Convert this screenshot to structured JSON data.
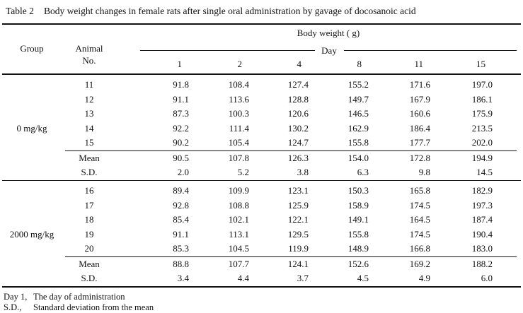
{
  "title": {
    "label": "Table 2",
    "text": "Body weight changes in female rats after single oral administration by gavage of docosanoic acid"
  },
  "header": {
    "group": "Group",
    "animal_line1": "Animal",
    "animal_line2": "No.",
    "body_weight": "Body weight ( g)",
    "day": "Day",
    "days": [
      "1",
      "2",
      "4",
      "8",
      "11",
      "15"
    ]
  },
  "groups": [
    {
      "label": "0 mg/kg",
      "label_row_index": 3,
      "animals": [
        {
          "no": "11",
          "values": [
            "91.8",
            "108.4",
            "127.4",
            "155.2",
            "171.6",
            "197.0"
          ]
        },
        {
          "no": "12",
          "values": [
            "91.1",
            "113.6",
            "128.8",
            "149.7",
            "167.9",
            "186.1"
          ]
        },
        {
          "no": "13",
          "values": [
            "87.3",
            "100.3",
            "120.6",
            "146.5",
            "160.6",
            "175.9"
          ]
        },
        {
          "no": "14",
          "values": [
            "92.2",
            "111.4",
            "130.2",
            "162.9",
            "186.4",
            "213.5"
          ]
        },
        {
          "no": "15",
          "values": [
            "90.2",
            "105.4",
            "124.7",
            "155.8",
            "177.7",
            "202.0"
          ]
        }
      ],
      "mean": {
        "label": "Mean",
        "values": [
          "90.5",
          "107.8",
          "126.3",
          "154.0",
          "172.8",
          "194.9"
        ]
      },
      "sd": {
        "label": "S.D.",
        "values": [
          "2.0",
          "5.2",
          "3.8",
          "6.3",
          "9.8",
          "14.5"
        ]
      }
    },
    {
      "label": "2000 mg/kg",
      "label_row_index": 3,
      "animals": [
        {
          "no": "16",
          "values": [
            "89.4",
            "109.9",
            "123.1",
            "150.3",
            "165.8",
            "182.9"
          ]
        },
        {
          "no": "17",
          "values": [
            "92.8",
            "108.8",
            "125.9",
            "158.9",
            "174.5",
            "197.3"
          ]
        },
        {
          "no": "18",
          "values": [
            "85.4",
            "102.1",
            "122.1",
            "149.1",
            "164.5",
            "187.4"
          ]
        },
        {
          "no": "19",
          "values": [
            "91.1",
            "113.1",
            "129.5",
            "155.8",
            "174.5",
            "190.4"
          ]
        },
        {
          "no": "20",
          "values": [
            "85.3",
            "104.5",
            "119.9",
            "148.9",
            "166.8",
            "183.0"
          ]
        }
      ],
      "mean": {
        "label": "Mean",
        "values": [
          "88.8",
          "107.7",
          "124.1",
          "152.6",
          "169.2",
          "188.2"
        ]
      },
      "sd": {
        "label": "S.D.",
        "values": [
          "3.4",
          "4.4",
          "3.7",
          "4.5",
          "4.9",
          "6.0"
        ]
      }
    }
  ],
  "footnotes": [
    {
      "term": "Day 1,",
      "desc": "The day of administration"
    },
    {
      "term": "S.D.,",
      "desc": "Standard deviation from the mean"
    }
  ]
}
